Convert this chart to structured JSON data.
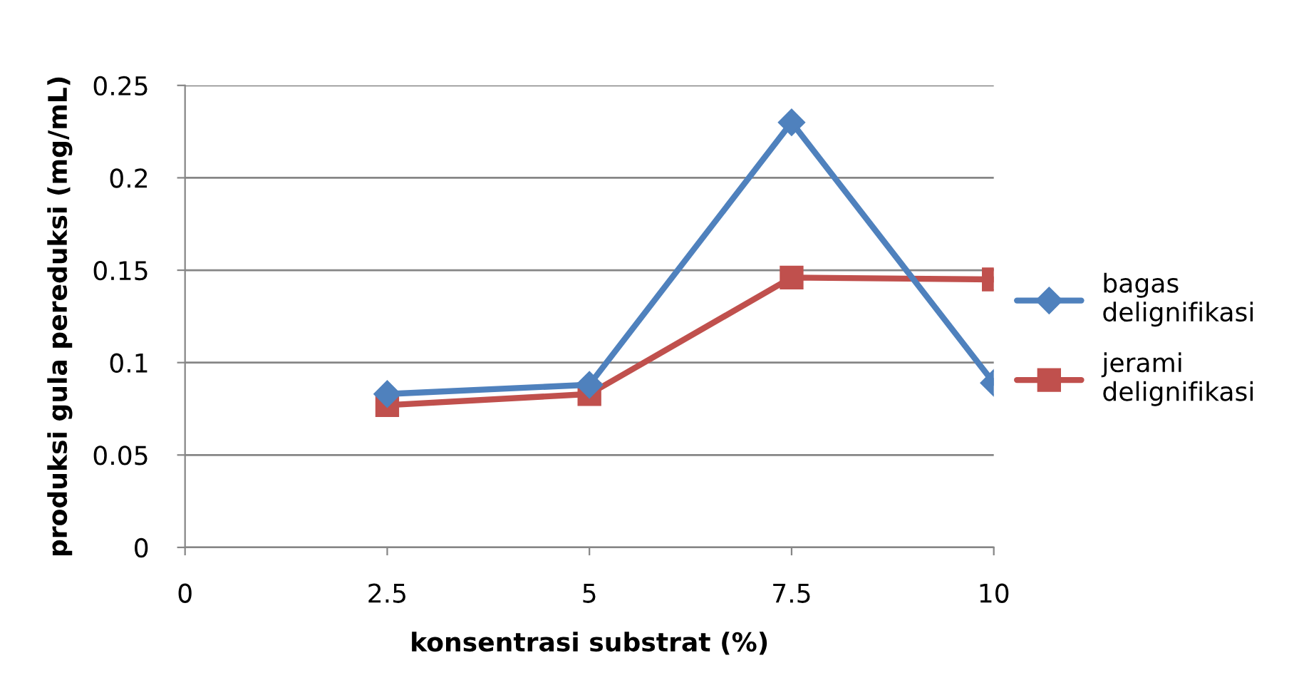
{
  "chart_data": {
    "type": "line",
    "xlabel": "konsentrasi substrat (%)",
    "ylabel": "produksi gula pereduksi (mg/mL)",
    "x": [
      2.5,
      5,
      7.5,
      10
    ],
    "series": [
      {
        "name": "bagas delignifikasi",
        "color": "#4f81bd",
        "marker": "diamond",
        "values": [
          0.083,
          0.088,
          0.23,
          0.089
        ]
      },
      {
        "name": "jerami delignifikasi",
        "color": "#c0504d",
        "marker": "square",
        "values": [
          0.077,
          0.083,
          0.146,
          0.145
        ]
      }
    ],
    "xlim": [
      0,
      10
    ],
    "xticks": [
      0,
      2.5,
      5,
      7.5,
      10
    ],
    "ylim": [
      0,
      0.25
    ],
    "yticks": [
      0,
      0.05,
      0.1,
      0.15,
      0.2,
      0.25
    ],
    "grid": "y",
    "legend": "right",
    "line_style": "solid"
  }
}
